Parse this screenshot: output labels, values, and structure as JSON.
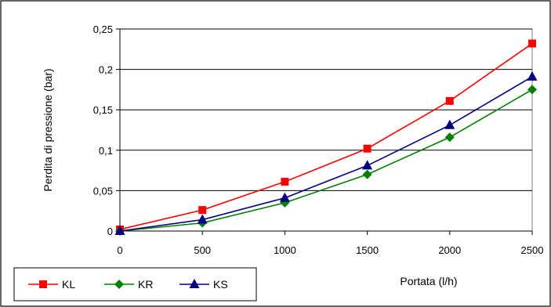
{
  "chart_data": {
    "type": "line",
    "xlabel": "Portata (l/h)",
    "ylabel": "Perdita di pressione (bar)",
    "x": [
      0,
      500,
      1000,
      1500,
      2000,
      2500
    ],
    "x_tick_labels": [
      "0",
      "500",
      "1000",
      "1500",
      "2000",
      "2500"
    ],
    "y_tick_values": [
      0,
      0.05,
      0.1,
      0.15,
      0.2,
      0.25
    ],
    "y_tick_labels": [
      "0",
      "0,05",
      "0,1",
      "0,15",
      "0,2",
      "0,25"
    ],
    "xlim": [
      0,
      2500
    ],
    "ylim": [
      0,
      0.25
    ],
    "grid": "horizontal",
    "legend_position": "bottom-left",
    "series": [
      {
        "name": "KL",
        "color": "#ff0000",
        "marker": "square",
        "values": [
          0.002,
          0.026,
          0.061,
          0.102,
          0.161,
          0.232
        ]
      },
      {
        "name": "KR",
        "color": "#008000",
        "marker": "diamond",
        "values": [
          0.0,
          0.01,
          0.035,
          0.07,
          0.116,
          0.175
        ]
      },
      {
        "name": "KS",
        "color": "#000080",
        "marker": "triangle",
        "values": [
          0.0,
          0.014,
          0.041,
          0.081,
          0.131,
          0.191
        ]
      }
    ]
  }
}
